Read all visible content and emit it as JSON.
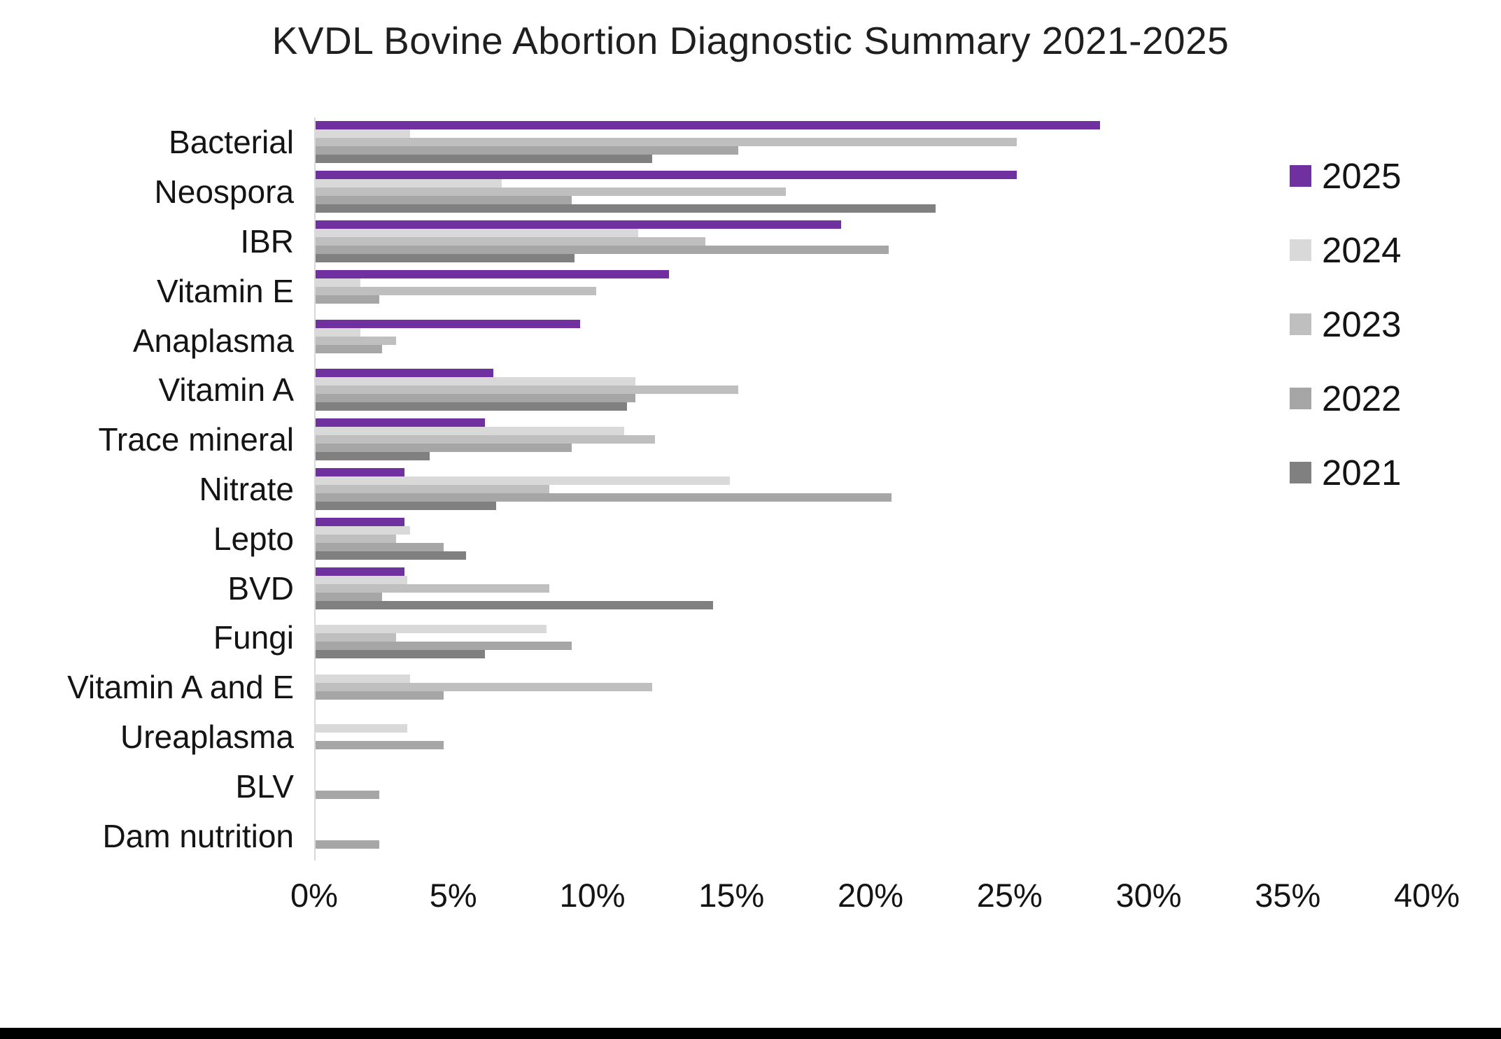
{
  "title": "KVDL Bovine Abortion Diagnostic Summary 2021-2025",
  "accent_color": "#7030A0",
  "axis_line_color": "#d9d9d9",
  "chart_data": {
    "type": "bar",
    "orientation": "horizontal",
    "title": "KVDL Bovine Abortion Diagnostic Summary 2021-2025",
    "xlabel": "",
    "ylabel": "",
    "xlim": [
      0,
      40
    ],
    "x_ticks": [
      "0%",
      "5%",
      "10%",
      "15%",
      "20%",
      "25%",
      "30%",
      "35%",
      "40%"
    ],
    "grid": false,
    "legend_position": "right",
    "bar_row_order": "top-to-bottom within each category: 2025, 2024, 2023, 2022, 2021",
    "categories": [
      "Bacterial",
      "Neospora",
      "IBR",
      "Vitamin E",
      "Anaplasma",
      "Vitamin A",
      "Trace mineral",
      "Nitrate",
      "Lepto",
      "BVD",
      "Fungi",
      "Vitamin A and E",
      "Ureaplasma",
      "BLV",
      "Dam nutrition"
    ],
    "series": [
      {
        "name": "2025",
        "color": "#7030A0",
        "values": [
          28.2,
          25.2,
          18.9,
          12.7,
          9.5,
          6.4,
          6.1,
          3.2,
          3.2,
          3.2,
          0,
          0,
          0,
          0,
          0
        ]
      },
      {
        "name": "2024",
        "color": "#D9D9D9",
        "values": [
          3.4,
          6.7,
          11.6,
          1.6,
          1.6,
          11.5,
          11.1,
          14.9,
          3.4,
          3.3,
          8.3,
          3.4,
          3.3,
          0,
          0
        ]
      },
      {
        "name": "2023",
        "color": "#BFBFBF",
        "values": [
          25.2,
          16.9,
          14.0,
          10.1,
          2.9,
          15.2,
          12.2,
          8.4,
          2.9,
          8.4,
          2.9,
          12.1,
          0,
          0,
          0
        ]
      },
      {
        "name": "2022",
        "color": "#A6A6A6",
        "values": [
          15.2,
          9.2,
          20.6,
          2.3,
          2.4,
          11.5,
          9.2,
          20.7,
          4.6,
          2.4,
          9.2,
          4.6,
          4.6,
          2.3,
          2.3
        ]
      },
      {
        "name": "2021",
        "color": "#808080",
        "values": [
          12.1,
          22.3,
          9.3,
          0,
          0,
          11.2,
          4.1,
          6.5,
          5.4,
          14.3,
          6.1,
          0,
          0,
          0,
          0
        ]
      }
    ]
  }
}
